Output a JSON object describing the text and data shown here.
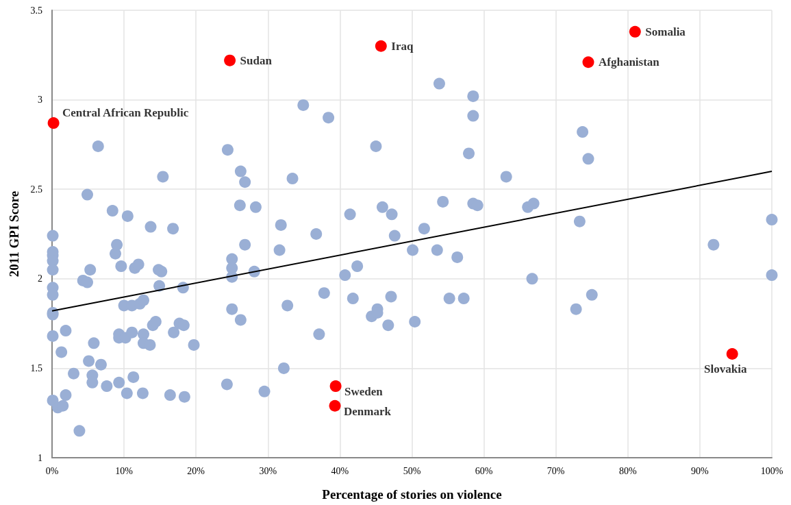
{
  "chart_data": {
    "type": "scatter",
    "xlabel": "Percentage of stories on violence",
    "ylabel": "2011 GPI Score",
    "xlim": [
      0,
      100
    ],
    "xticks": [
      {
        "value": 0,
        "label": "0%"
      },
      {
        "value": 10,
        "label": "10%"
      },
      {
        "value": 20,
        "label": "20%"
      },
      {
        "value": 30,
        "label": "30%"
      },
      {
        "value": 40,
        "label": "40%"
      },
      {
        "value": 50,
        "label": "50%"
      },
      {
        "value": 60,
        "label": "60%"
      },
      {
        "value": 70,
        "label": "70%"
      },
      {
        "value": 80,
        "label": "80%"
      },
      {
        "value": 90,
        "label": "90%"
      },
      {
        "value": 100,
        "label": "100%"
      }
    ],
    "ylim": [
      1,
      3.5
    ],
    "yticks": [
      1,
      1.5,
      2,
      2.5,
      3,
      3.5
    ],
    "grid": true,
    "marker": "circle",
    "series": [
      {
        "color": "#9aafd5",
        "x": [
          0.1,
          0.1,
          0.1,
          0.1,
          0.1,
          0.1,
          0.1,
          0.1,
          0.1,
          0.1,
          0.1,
          0.8,
          1.5,
          1.9,
          1.9,
          1.3,
          3.0,
          3.8,
          4.3,
          4.9,
          4.9,
          5.1,
          5.3,
          5.6,
          5.6,
          5.8,
          6.4,
          6.8,
          7.6,
          8.4,
          8.8,
          9.0,
          9.3,
          9.3,
          9.3,
          9.6,
          10.0,
          10.2,
          10.4,
          10.5,
          11.1,
          11.1,
          11.3,
          11.5,
          12.0,
          12.2,
          12.6,
          12.7,
          12.7,
          12.7,
          13.6,
          13.7,
          14.0,
          14.4,
          14.8,
          14.9,
          15.2,
          15.4,
          16.4,
          16.8,
          16.9,
          17.7,
          18.2,
          18.3,
          18.4,
          19.7,
          24.3,
          24.4,
          25.0,
          25.0,
          25.0,
          25.0,
          26.1,
          26.2,
          26.2,
          26.8,
          26.8,
          28.1,
          28.3,
          29.5,
          31.6,
          31.8,
          32.2,
          32.7,
          33.4,
          34.9,
          36.7,
          37.1,
          37.8,
          38.4,
          40.7,
          41.4,
          41.8,
          42.4,
          44.4,
          45.0,
          45.2,
          45.2,
          45.9,
          46.7,
          47.1,
          47.2,
          47.6,
          50.1,
          50.4,
          51.7,
          53.5,
          53.8,
          54.3,
          55.2,
          56.3,
          57.2,
          57.9,
          58.5,
          58.5,
          58.5,
          59.1,
          63.1,
          66.1,
          66.7,
          66.9,
          72.8,
          73.3,
          73.7,
          74.5,
          75.0,
          91.9,
          100,
          100
        ],
        "values": [
          2.24,
          2.15,
          2.13,
          2.1,
          2.05,
          1.95,
          1.91,
          1.81,
          1.8,
          1.68,
          1.32,
          1.28,
          1.29,
          1.71,
          1.35,
          1.59,
          1.47,
          1.15,
          1.99,
          1.98,
          2.47,
          1.54,
          2.05,
          1.46,
          1.42,
          1.64,
          2.74,
          1.52,
          1.4,
          2.38,
          2.14,
          2.19,
          1.69,
          1.67,
          1.42,
          2.07,
          1.85,
          1.67,
          1.36,
          2.35,
          1.85,
          1.7,
          1.45,
          2.06,
          2.08,
          1.86,
          1.36,
          1.88,
          1.69,
          1.64,
          1.63,
          2.29,
          1.74,
          1.76,
          2.05,
          1.96,
          2.04,
          2.57,
          1.35,
          2.28,
          1.7,
          1.75,
          1.95,
          1.74,
          1.34,
          1.63,
          1.41,
          2.72,
          2.11,
          2.06,
          2.01,
          1.83,
          2.41,
          2.6,
          1.77,
          2.54,
          2.19,
          2.04,
          2.4,
          1.37,
          2.16,
          2.3,
          1.5,
          1.85,
          2.56,
          2.97,
          2.25,
          1.69,
          1.92,
          2.9,
          2.02,
          2.36,
          1.89,
          2.07,
          1.79,
          2.74,
          1.83,
          1.81,
          2.4,
          1.74,
          1.9,
          2.36,
          2.24,
          2.16,
          1.76,
          2.28,
          2.16,
          3.09,
          2.43,
          1.89,
          2.12,
          1.89,
          2.7,
          3.02,
          2.91,
          2.42,
          2.41,
          2.57,
          2.4,
          2.0,
          2.42,
          1.83,
          2.32,
          2.82,
          2.67,
          1.91,
          2.19,
          2.33,
          2.02
        ]
      },
      {
        "color": "#ff0000",
        "x": [
          0.2,
          24.7,
          45.7,
          81.0,
          74.5,
          39.4,
          39.3,
          94.5
        ],
        "values": [
          2.87,
          3.22,
          3.3,
          3.38,
          3.21,
          1.4,
          1.29,
          1.58
        ]
      },
      {
        "type": "line",
        "color": "#000000",
        "marker": "none",
        "x": [
          0,
          100
        ],
        "values": [
          1.82,
          2.6
        ]
      }
    ],
    "annotations": [
      {
        "text": "Central African Republic",
        "x": 0.2,
        "y": 2.87
      },
      {
        "text": "Sudan",
        "x": 24.7,
        "y": 3.22
      },
      {
        "text": "Iraq",
        "x": 45.7,
        "y": 3.3
      },
      {
        "text": "Somalia",
        "x": 81.0,
        "y": 3.38
      },
      {
        "text": "Afghanistan",
        "x": 74.5,
        "y": 3.21
      },
      {
        "text": "Sweden",
        "x": 39.4,
        "y": 1.4
      },
      {
        "text": "Denmark",
        "x": 39.3,
        "y": 1.29
      },
      {
        "text": "Slovakia",
        "x": 94.5,
        "y": 1.58
      }
    ]
  }
}
